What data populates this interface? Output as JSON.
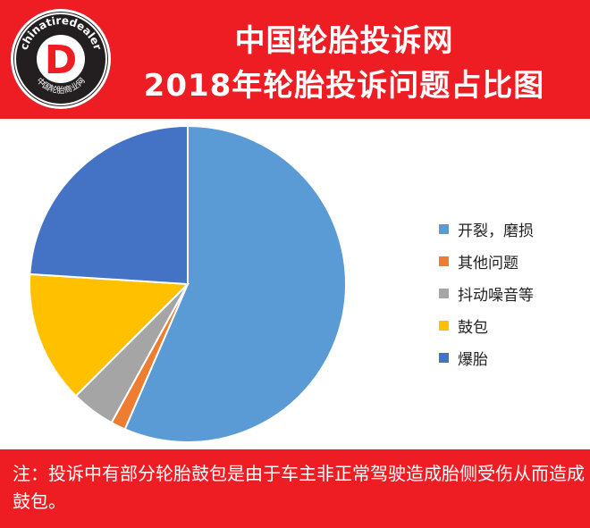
{
  "logo": {
    "ring_text": "chinatiredealer",
    "letter": "D",
    "bottom_text": "中国轮胎商业网"
  },
  "header": {
    "title_line1": "中国轮胎投诉网",
    "title_line2": "2018年轮胎投诉问题占比图"
  },
  "chart_data": {
    "type": "pie",
    "start_angle_deg": 0,
    "direction": "clockwise",
    "categories": [
      "开裂，磨损",
      "其他问题",
      "抖动噪音等",
      "鼓包",
      "爆胎"
    ],
    "values": [
      56.5,
      1.5,
      4.5,
      13.5,
      24.0
    ],
    "colors": [
      "#5b9bd5",
      "#ed7d31",
      "#a5a5a5",
      "#ffc000",
      "#4472c4"
    ],
    "legend_position": "right"
  },
  "footer": {
    "note": "注：投诉中有部分轮胎鼓包是由于车主非正常驾驶造成胎侧受伤从而造成鼓包。"
  }
}
